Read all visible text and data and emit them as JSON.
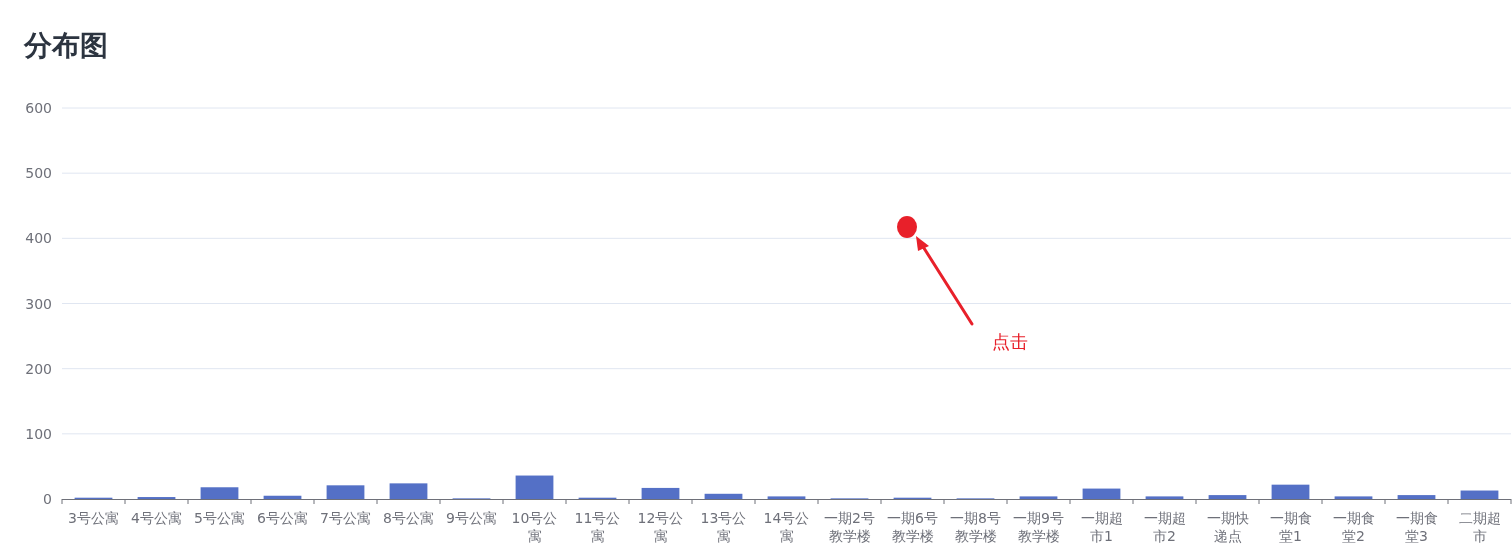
{
  "chart_data": {
    "type": "bar",
    "title": "分布图",
    "categories": [
      "3号公寓",
      "4号公寓",
      "5号公寓",
      "6号公寓",
      "7号公寓",
      "8号公寓",
      "9号公寓",
      "10号公寓",
      "11号公寓",
      "12号公寓",
      "13号公寓",
      "14号公寓",
      "一期2号教学楼",
      "一期6号教学楼",
      "一期8号教学楼",
      "一期9号教学楼",
      "一期超市1",
      "一期超市2",
      "一期快递点",
      "一期食堂1",
      "一期食堂2",
      "一期食堂3",
      "二期超市"
    ],
    "values": [
      2,
      3,
      18,
      5,
      21,
      24,
      1,
      36,
      2,
      17,
      8,
      4,
      1,
      2,
      1,
      4,
      16,
      4,
      6,
      22,
      4,
      6,
      13
    ],
    "color": "#5470c6",
    "ylim": [
      0,
      600
    ],
    "yticks": [
      0,
      100,
      200,
      300,
      400,
      500,
      600
    ],
    "grid": "y",
    "annotations": [
      "点击"
    ]
  }
}
